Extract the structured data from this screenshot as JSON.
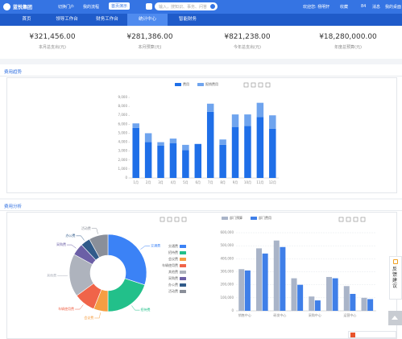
{
  "header": {
    "brand": "蓝悦集团",
    "menus": [
      "切换门户",
      "我的流程"
    ],
    "button": "首页演示",
    "search_placeholder": "输入，搜知识、事务、问答",
    "user": "欢迎您: 杨明轩",
    "links": [
      "收藏",
      "84",
      "消息",
      "我的桌面"
    ]
  },
  "nav": [
    "首页",
    "领导工作台",
    "财务工作台",
    "统计中心",
    "智能财务"
  ],
  "kpis": [
    {
      "value": "¥321,456.00",
      "label": "本月总支出(元)"
    },
    {
      "value": "¥281,386.00",
      "label": "本月预算(元)"
    },
    {
      "value": "¥821,238.00",
      "label": "今年总支出(元)"
    },
    {
      "value": "¥18,280,000.00",
      "label": "年度总预算(元)"
    }
  ],
  "sections": [
    "费用趋势",
    "费用分析"
  ],
  "feedback": "反馈建议",
  "chart_data": [
    {
      "type": "bar",
      "stacked": true,
      "categories": [
        "1月",
        "2月",
        "3月",
        "4月",
        "5月",
        "6月",
        "7月",
        "8月",
        "9月",
        "10月",
        "11月",
        "12月"
      ],
      "series": [
        {
          "name": "费用",
          "color": "#1f6fe8",
          "values": [
            5600,
            4000,
            3600,
            3900,
            3100,
            3800,
            7400,
            3700,
            5700,
            5800,
            6800,
            5500
          ]
        },
        {
          "name": "报销费用",
          "color": "#6fa4ee",
          "values": [
            500,
            1000,
            400,
            500,
            600,
            0,
            900,
            600,
            1400,
            1300,
            1600,
            1500
          ]
        }
      ],
      "ylim": [
        0,
        9000
      ],
      "yticks": [
        0,
        {
          "value": 1000,
          "label": "1,000"
        },
        {
          "value": 2000,
          "label": "2,000"
        },
        {
          "value": 3000,
          "label": "3,000"
        },
        {
          "value": 4000,
          "label": "4,000"
        },
        {
          "value": 5000,
          "label": "5,000"
        },
        {
          "value": 6000,
          "label": "6,000"
        },
        {
          "value": 7000,
          "label": "7,000"
        },
        {
          "value": 8000,
          "label": "8,000"
        },
        {
          "value": 9000,
          "label": "9,000"
        }
      ],
      "grid": false,
      "legend": "top"
    },
    {
      "type": "pie",
      "donut": true,
      "categories": [
        "交通费",
        "招待费",
        "会议费",
        "车辆使用费",
        "其他费",
        "采购费",
        "办公费",
        "活动费"
      ],
      "values": [
        30,
        20,
        6,
        9,
        18,
        5,
        4,
        8
      ],
      "colors": [
        "#3b82f6",
        "#22c08a",
        "#f59e42",
        "#f06449",
        "#aeb3bd",
        "#6b5fa6",
        "#315b8a",
        "#8a8f99"
      ],
      "legend": "right"
    },
    {
      "type": "bar",
      "stacked": false,
      "categories": [
        "销售中心",
        null,
        "研发中心",
        null,
        "采购中心",
        null,
        "运营中心",
        null
      ],
      "series": [
        {
          "name": "部门预算",
          "color": "#a9b4c8",
          "values": [
            320000,
            480000,
            540000,
            250000,
            110000,
            260000,
            190000,
            100000
          ]
        },
        {
          "name": "部门费用",
          "color": "#3f7fe8",
          "values": [
            310000,
            440000,
            490000,
            200000,
            80000,
            250000,
            130000,
            90000
          ]
        }
      ],
      "ylim": [
        0,
        600000
      ],
      "yticks": [
        0,
        {
          "value": 100000,
          "label": "100,000"
        },
        {
          "value": 200000,
          "label": "200,000"
        },
        {
          "value": 300000,
          "label": "300,000"
        },
        {
          "value": 400000,
          "label": "400,000"
        },
        {
          "value": 500000,
          "label": "500,000"
        },
        {
          "value": 600000,
          "label": "600,000"
        }
      ],
      "grid": true,
      "legend": "top"
    }
  ]
}
